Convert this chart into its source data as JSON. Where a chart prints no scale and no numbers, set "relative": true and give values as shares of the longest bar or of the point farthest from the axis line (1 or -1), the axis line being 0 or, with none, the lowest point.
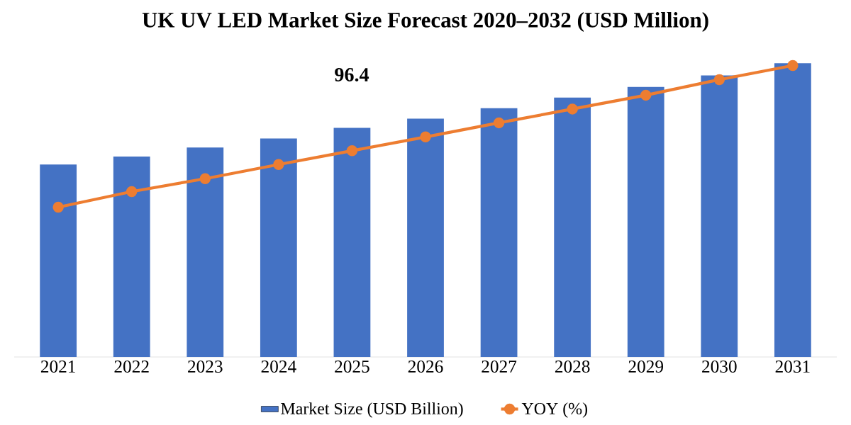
{
  "chart_data": {
    "type": "bar",
    "relative": true,
    "title": "UK UV LED Market Size Forecast 2020–2032 (USD Million)",
    "categories": [
      "2021",
      "2022",
      "2023",
      "2024",
      "2025",
      "2026",
      "2027",
      "2028",
      "2029",
      "2030",
      "2031"
    ],
    "series": [
      {
        "name": "Market Size (USD Billion)",
        "color": "#4472c4",
        "values": [
          0.655,
          0.682,
          0.713,
          0.744,
          0.78,
          0.811,
          0.847,
          0.883,
          0.919,
          0.958,
          1
        ]
      },
      {
        "name": "YOY (%)",
        "type": "line",
        "color": "#ed7d31",
        "values": [
          0.51,
          0.563,
          0.607,
          0.655,
          0.702,
          0.749,
          0.797,
          0.844,
          0.891,
          0.944,
          0.992
        ]
      }
    ],
    "annotations": [
      "96.4"
    ],
    "marker": "circle",
    "legend": "bottom"
  }
}
